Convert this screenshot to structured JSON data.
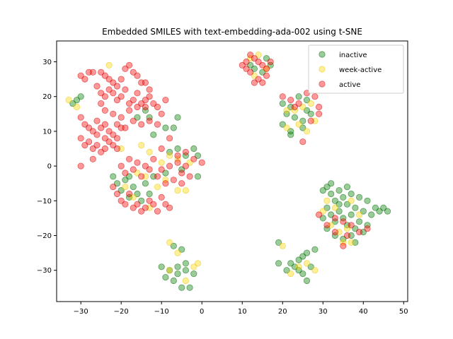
{
  "chart_data": {
    "type": "scatter",
    "title": "Embedded SMILES with text-embedding-ada-002 using t-SNE",
    "xlabel": "",
    "ylabel": "",
    "xlim": [
      -36,
      51
    ],
    "ylim": [
      -39,
      36
    ],
    "xticks": [
      -30,
      -20,
      -10,
      0,
      10,
      20,
      30,
      40,
      50
    ],
    "yticks": [
      -30,
      -20,
      -10,
      0,
      10,
      20,
      30
    ],
    "grid": false,
    "legend_position": "top-right",
    "series": [
      {
        "name": "inactive",
        "color": "#008000",
        "edge": "#006400",
        "points": [
          [
            -32,
            18
          ],
          [
            -31,
            19
          ],
          [
            -30,
            20
          ],
          [
            -16,
            14
          ],
          [
            -14,
            16
          ],
          [
            -13,
            14
          ],
          [
            -12,
            9
          ],
          [
            -9,
            11
          ],
          [
            -7,
            11
          ],
          [
            -6,
            14
          ],
          [
            -8,
            4
          ],
          [
            -6,
            5
          ],
          [
            -4,
            3
          ],
          [
            -2,
            5
          ],
          [
            -1,
            3
          ],
          [
            -1,
            -3
          ],
          [
            -5,
            -1
          ],
          [
            -9,
            -2
          ],
          [
            -12,
            -3
          ],
          [
            -22,
            -3
          ],
          [
            -21,
            -5
          ],
          [
            -19,
            -4
          ],
          [
            -18,
            -3
          ],
          [
            -17,
            -6
          ],
          [
            -16,
            -8
          ],
          [
            -14,
            -5
          ],
          [
            -13,
            -8
          ],
          [
            -20,
            -7
          ],
          [
            -18,
            -9
          ],
          [
            -15,
            -10
          ],
          [
            -7,
            -23
          ],
          [
            -5,
            -24
          ],
          [
            -10,
            -29
          ],
          [
            -8,
            -30
          ],
          [
            -6,
            -29
          ],
          [
            -4,
            -30
          ],
          [
            -2,
            -31
          ],
          [
            -9,
            -32
          ],
          [
            -7,
            -33
          ],
          [
            -5,
            -35
          ],
          [
            -3,
            -35
          ],
          [
            -4,
            -28
          ],
          [
            -6,
            -31
          ],
          [
            12,
            29
          ],
          [
            13,
            28
          ],
          [
            15,
            27
          ],
          [
            17,
            29
          ],
          [
            16,
            31
          ],
          [
            20,
            18
          ],
          [
            22,
            17
          ],
          [
            24,
            20
          ],
          [
            26,
            19
          ],
          [
            21,
            15
          ],
          [
            23,
            14
          ],
          [
            25,
            13
          ],
          [
            27,
            15
          ],
          [
            20,
            12
          ],
          [
            22,
            10
          ],
          [
            25,
            11
          ],
          [
            22,
            9
          ],
          [
            26,
            16
          ],
          [
            19,
            -22
          ],
          [
            19,
            -28
          ],
          [
            21,
            -30
          ],
          [
            22,
            -28
          ],
          [
            23,
            -29
          ],
          [
            24,
            -27
          ],
          [
            25,
            -26
          ],
          [
            26,
            -25
          ],
          [
            24,
            -30
          ],
          [
            27,
            -29
          ],
          [
            25,
            -31
          ],
          [
            28,
            -24
          ],
          [
            26,
            -33
          ],
          [
            30,
            -7
          ],
          [
            31,
            -6
          ],
          [
            32,
            -8
          ],
          [
            33,
            -10
          ],
          [
            34,
            -7
          ],
          [
            35,
            -9
          ],
          [
            36,
            -11
          ],
          [
            37,
            -8
          ],
          [
            38,
            -12
          ],
          [
            39,
            -9
          ],
          [
            40,
            -13
          ],
          [
            31,
            -12
          ],
          [
            32,
            -14
          ],
          [
            33,
            -16
          ],
          [
            34,
            -13
          ],
          [
            35,
            -15
          ],
          [
            36,
            -17
          ],
          [
            37,
            -14
          ],
          [
            38,
            -18
          ],
          [
            39,
            -16
          ],
          [
            40,
            -19
          ],
          [
            41,
            -17
          ],
          [
            31,
            -18
          ],
          [
            33,
            -20
          ],
          [
            35,
            -21
          ],
          [
            37,
            -20
          ],
          [
            34,
            -11
          ],
          [
            36,
            -6
          ],
          [
            30,
            -15
          ],
          [
            42,
            -14
          ],
          [
            43,
            -12
          ],
          [
            44,
            -13
          ],
          [
            45,
            -12
          ],
          [
            46,
            -13
          ],
          [
            32,
            -5
          ],
          [
            41,
            -10
          ],
          [
            38,
            -22
          ]
        ]
      },
      {
        "name": "week-active",
        "color": "#FFD700",
        "edge": "#E6C200",
        "points": [
          [
            -33,
            19
          ],
          [
            -31,
            17
          ],
          [
            -23,
            29
          ],
          [
            -20,
            5
          ],
          [
            -15,
            6
          ],
          [
            -13,
            4
          ],
          [
            -10,
            1
          ],
          [
            -8,
            3
          ],
          [
            -6,
            2
          ],
          [
            -3,
            1
          ],
          [
            -9,
            -4
          ],
          [
            -6,
            -7
          ],
          [
            -4,
            -7
          ],
          [
            -16,
            -2
          ],
          [
            -14,
            -3
          ],
          [
            -11,
            -6
          ],
          [
            -19,
            -6
          ],
          [
            -17,
            -9
          ],
          [
            -13,
            -12
          ],
          [
            -8,
            -22
          ],
          [
            -6,
            -25
          ],
          [
            -2,
            -29
          ],
          [
            -1,
            -28
          ],
          [
            -4,
            -33
          ],
          [
            -8,
            -30
          ],
          [
            12,
            31
          ],
          [
            14,
            32
          ],
          [
            16,
            28
          ],
          [
            13,
            26
          ],
          [
            21,
            16
          ],
          [
            23,
            16
          ],
          [
            25,
            17
          ],
          [
            27,
            18
          ],
          [
            28,
            13
          ],
          [
            24,
            12
          ],
          [
            21,
            11
          ],
          [
            26,
            10
          ],
          [
            20,
            -23
          ],
          [
            22,
            -31
          ],
          [
            24,
            -29
          ],
          [
            26,
            -28
          ],
          [
            28,
            -30
          ],
          [
            30,
            -13
          ],
          [
            32,
            -17
          ],
          [
            34,
            -19
          ],
          [
            36,
            -18
          ],
          [
            37,
            -22
          ],
          [
            35,
            -22
          ],
          [
            31,
            -10
          ],
          [
            33,
            -12
          ],
          [
            37,
            -10
          ],
          [
            39,
            -14
          ]
        ]
      },
      {
        "name": "active",
        "color": "#FF0000",
        "edge": "#CC0000",
        "points": [
          [
            -30,
            26
          ],
          [
            -29,
            25
          ],
          [
            -28,
            27
          ],
          [
            -27,
            27
          ],
          [
            -25,
            27
          ],
          [
            -24,
            26
          ],
          [
            -23,
            25
          ],
          [
            -22,
            24
          ],
          [
            -21,
            23
          ],
          [
            -20,
            25
          ],
          [
            -19,
            28
          ],
          [
            -18,
            29
          ],
          [
            -17,
            27
          ],
          [
            -16,
            26
          ],
          [
            -15,
            24
          ],
          [
            -14,
            24
          ],
          [
            -13,
            22
          ],
          [
            -26,
            23
          ],
          [
            -25,
            21
          ],
          [
            -24,
            20
          ],
          [
            -23,
            22
          ],
          [
            -22,
            21
          ],
          [
            -21,
            19
          ],
          [
            -20,
            20
          ],
          [
            -19,
            22
          ],
          [
            -18,
            18
          ],
          [
            -17,
            19
          ],
          [
            -16,
            21
          ],
          [
            -15,
            18
          ],
          [
            -14,
            19
          ],
          [
            -13,
            20
          ],
          [
            -12,
            18
          ],
          [
            -11,
            17
          ],
          [
            -10,
            15
          ],
          [
            -9,
            19
          ],
          [
            -25,
            18
          ],
          [
            -24,
            16
          ],
          [
            -22,
            15
          ],
          [
            -20,
            14
          ],
          [
            -18,
            16
          ],
          [
            -16,
            17
          ],
          [
            -14,
            17
          ],
          [
            -21,
            12
          ],
          [
            -19,
            11
          ],
          [
            -17,
            13
          ],
          [
            -15,
            12
          ],
          [
            -13,
            13
          ],
          [
            -11,
            12
          ],
          [
            -30,
            14
          ],
          [
            -29,
            12
          ],
          [
            -28,
            11
          ],
          [
            -27,
            10
          ],
          [
            -26,
            13
          ],
          [
            -25,
            11
          ],
          [
            -24,
            12
          ],
          [
            -23,
            10
          ],
          [
            -22,
            9
          ],
          [
            -21,
            8
          ],
          [
            -20,
            11
          ],
          [
            -30,
            8
          ],
          [
            -29,
            6
          ],
          [
            -28,
            7
          ],
          [
            -27,
            5
          ],
          [
            -26,
            6
          ],
          [
            -25,
            4
          ],
          [
            -24,
            5
          ],
          [
            -23,
            7
          ],
          [
            -22,
            6
          ],
          [
            -21,
            5
          ],
          [
            -26,
            9
          ],
          [
            -24,
            8
          ],
          [
            -30,
            0
          ],
          [
            -27,
            2
          ],
          [
            -18,
            2
          ],
          [
            -16,
            1
          ],
          [
            -14,
            0
          ],
          [
            -12,
            2
          ],
          [
            -10,
            -1
          ],
          [
            -8,
            0
          ],
          [
            -6,
            1
          ],
          [
            -4,
            0
          ],
          [
            -2,
            2
          ],
          [
            0,
            1
          ],
          [
            -20,
            0
          ],
          [
            -19,
            -2
          ],
          [
            -17,
            -1
          ],
          [
            -15,
            -3
          ],
          [
            -13,
            -1
          ],
          [
            -11,
            -3
          ],
          [
            -9,
            -5
          ],
          [
            -7,
            -4
          ],
          [
            -5,
            -2
          ],
          [
            -3,
            -3
          ],
          [
            -22,
            -6
          ],
          [
            -21,
            -8
          ],
          [
            -20,
            -10
          ],
          [
            -19,
            -11
          ],
          [
            -18,
            -8
          ],
          [
            -17,
            -12
          ],
          [
            -16,
            -11
          ],
          [
            -15,
            -13
          ],
          [
            -14,
            -12
          ],
          [
            -13,
            -10
          ],
          [
            -12,
            -11
          ],
          [
            -11,
            -13
          ],
          [
            -10,
            -9
          ],
          [
            -9,
            -11
          ],
          [
            -8,
            -12
          ],
          [
            -10,
            5
          ],
          [
            -6,
            3
          ],
          [
            -4,
            4
          ],
          [
            -8,
            8
          ],
          [
            -5,
            -5
          ],
          [
            10,
            29
          ],
          [
            11,
            30
          ],
          [
            12,
            32
          ],
          [
            13,
            31
          ],
          [
            14,
            30
          ],
          [
            15,
            29
          ],
          [
            16,
            28
          ],
          [
            17,
            30
          ],
          [
            12,
            27
          ],
          [
            13,
            24
          ],
          [
            14,
            25
          ],
          [
            15,
            24
          ],
          [
            11,
            28
          ],
          [
            16,
            26
          ],
          [
            20,
            20
          ],
          [
            22,
            19
          ],
          [
            24,
            18
          ],
          [
            26,
            21
          ],
          [
            28,
            20
          ],
          [
            29,
            17
          ],
          [
            29,
            15
          ],
          [
            27,
            13
          ],
          [
            25,
            7
          ],
          [
            23,
            17
          ],
          [
            29,
            -14
          ],
          [
            31,
            -17
          ],
          [
            33,
            -15
          ],
          [
            35,
            -16
          ],
          [
            37,
            -17
          ],
          [
            39,
            -19
          ],
          [
            41,
            -18
          ],
          [
            35,
            -23
          ],
          [
            36,
            -20
          ],
          [
            33,
            -19
          ]
        ]
      }
    ]
  }
}
